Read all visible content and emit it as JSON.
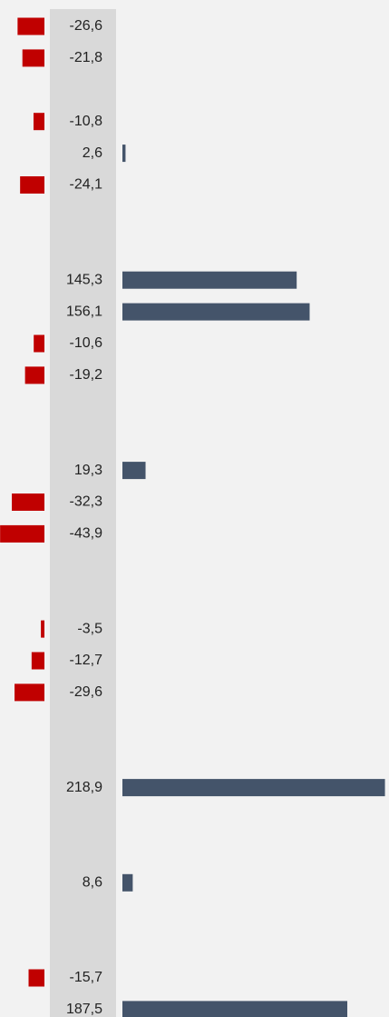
{
  "chart_data": {
    "type": "diverging-bar",
    "values": [
      -26.6,
      -21.8,
      null,
      -10.8,
      2.6,
      -24.1,
      null,
      null,
      145.3,
      156.1,
      -10.6,
      -19.2,
      null,
      null,
      19.3,
      -32.3,
      -43.9,
      null,
      null,
      -3.5,
      -12.7,
      -29.6,
      null,
      null,
      218.9,
      null,
      null,
      8.6,
      null,
      null,
      -15.7,
      187.5
    ],
    "value_labels": [
      "-26,6",
      "-21,8",
      null,
      "-10,8",
      "2,6",
      "-24,1",
      null,
      null,
      "145,3",
      "156,1",
      "-10,6",
      "-19,2",
      null,
      null,
      "19,3",
      "-32,3",
      "-43,9",
      null,
      null,
      "-3,5",
      "-12,7",
      "-29,6",
      null,
      null,
      "218,9",
      null,
      null,
      "8,6",
      null,
      null,
      "-15,7",
      "187,5"
    ],
    "xlim_left": [
      -44,
      0
    ],
    "xlim_right": [
      0,
      220
    ],
    "color_positive": "#44546a",
    "color_negative": "#c00000"
  }
}
